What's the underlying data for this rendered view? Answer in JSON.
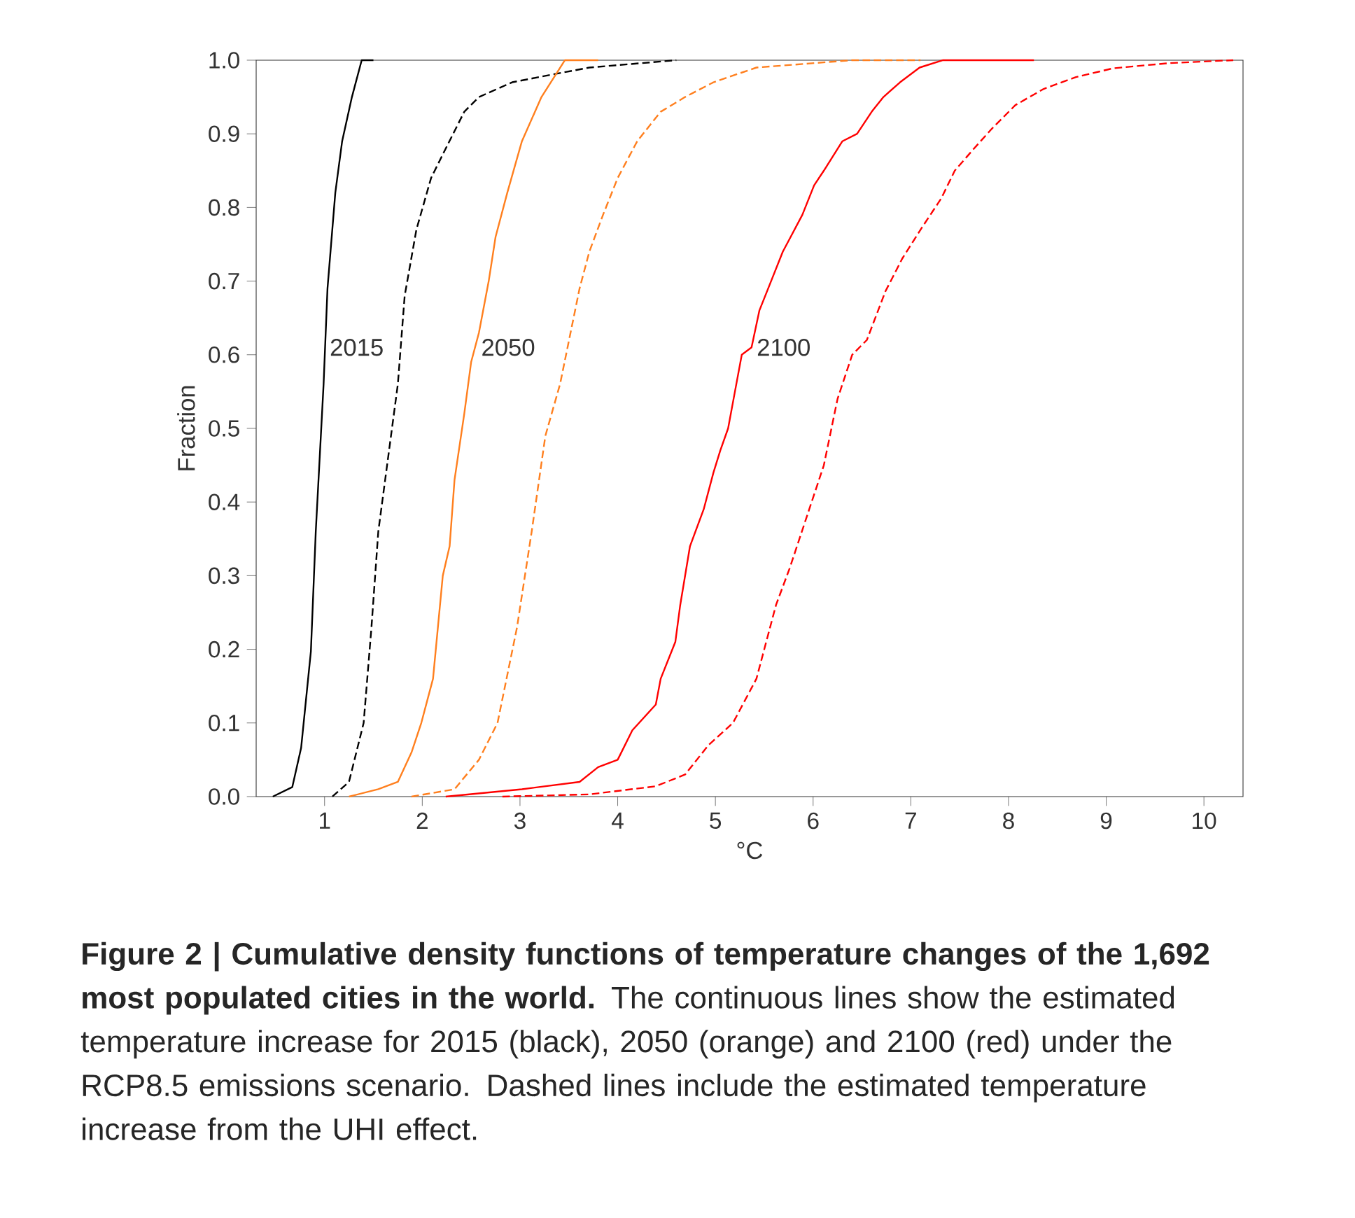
{
  "chart_data": {
    "type": "line",
    "xlabel": "°C",
    "ylabel": "Fraction",
    "xlim": [
      0.3,
      10.4
    ],
    "ylim": [
      0,
      1
    ],
    "xticks": [
      1,
      2,
      3,
      4,
      5,
      6,
      7,
      8,
      9,
      10
    ],
    "yticks": [
      {
        "value": 0,
        "label": "0.0"
      },
      0.1,
      0.2,
      0.3,
      0.4,
      0.5,
      0.6,
      0.7,
      0.8,
      0.9,
      {
        "value": 1,
        "label": "1.0"
      }
    ],
    "marker": "none",
    "series": [
      {
        "color": "#000000",
        "line_style": "solid",
        "x": [
          0.47,
          0.67,
          0.76,
          0.86,
          0.91,
          0.99,
          1.03,
          1.11,
          1.18,
          1.28,
          1.38,
          1.5
        ],
        "values": [
          0,
          0.013,
          0.066,
          0.197,
          0.36,
          0.56,
          0.69,
          0.82,
          0.89,
          0.95,
          1.0,
          1.0
        ]
      },
      {
        "color": "#000000",
        "line_style": "dashed",
        "x": [
          1.08,
          1.25,
          1.4,
          1.48,
          1.55,
          1.65,
          1.75,
          1.82,
          1.94,
          2.09,
          2.24,
          2.43,
          2.58,
          2.92,
          3.31,
          3.71,
          4.6
        ],
        "values": [
          0,
          0.02,
          0.1,
          0.23,
          0.36,
          0.46,
          0.56,
          0.68,
          0.77,
          0.84,
          0.88,
          0.93,
          0.95,
          0.97,
          0.98,
          0.99,
          1.0
        ]
      },
      {
        "color": "#ff7f1e",
        "line_style": "solid",
        "x": [
          1.25,
          1.55,
          1.75,
          1.89,
          1.99,
          2.11,
          2.21,
          2.28,
          2.33,
          2.43,
          2.5,
          2.58,
          2.68,
          2.75,
          2.87,
          3.02,
          3.22,
          3.46,
          3.8
        ],
        "values": [
          0,
          0.01,
          0.02,
          0.06,
          0.1,
          0.16,
          0.3,
          0.34,
          0.43,
          0.52,
          0.59,
          0.63,
          0.7,
          0.76,
          0.82,
          0.89,
          0.95,
          1.0,
          1.0
        ]
      },
      {
        "color": "#ff7f1e",
        "line_style": "dashed",
        "x": [
          1.89,
          2.33,
          2.58,
          2.77,
          2.97,
          3.12,
          3.26,
          3.41,
          3.61,
          3.71,
          3.85,
          4.0,
          4.2,
          4.44,
          4.69,
          4.98,
          5.42,
          6.4,
          7.1
        ],
        "values": [
          0,
          0.01,
          0.05,
          0.1,
          0.23,
          0.36,
          0.49,
          0.56,
          0.69,
          0.74,
          0.79,
          0.84,
          0.89,
          0.93,
          0.95,
          0.97,
          0.99,
          1.0,
          1.0
        ]
      },
      {
        "color": "#ff0000",
        "line_style": "solid",
        "x": [
          2.24,
          3.02,
          3.61,
          3.8,
          4.0,
          4.15,
          4.39,
          4.44,
          4.59,
          4.64,
          4.74,
          4.88,
          4.98,
          5.05,
          5.13,
          5.2,
          5.27,
          5.37,
          5.45,
          5.57,
          5.69,
          5.77,
          5.89,
          6.01,
          6.11,
          6.3,
          6.45,
          6.6,
          6.72,
          6.89,
          7.09,
          7.33,
          8.26
        ],
        "values": [
          0,
          0.01,
          0.02,
          0.04,
          0.05,
          0.09,
          0.125,
          0.16,
          0.21,
          0.26,
          0.34,
          0.39,
          0.44,
          0.47,
          0.5,
          0.55,
          0.6,
          0.61,
          0.66,
          0.7,
          0.74,
          0.76,
          0.79,
          0.83,
          0.85,
          0.89,
          0.9,
          0.93,
          0.95,
          0.97,
          0.99,
          1.0,
          1.0
        ]
      },
      {
        "color": "#ff0000",
        "line_style": "dashed",
        "x": [
          2.82,
          3.71,
          4.39,
          4.69,
          4.93,
          5.18,
          5.42,
          5.62,
          5.76,
          5.96,
          6.11,
          6.25,
          6.4,
          6.55,
          6.74,
          6.91,
          7.12,
          7.31,
          7.45,
          7.64,
          7.83,
          8.07,
          8.36,
          8.69,
          9.07,
          9.64,
          10.3
        ],
        "values": [
          0,
          0.003,
          0.014,
          0.03,
          0.07,
          0.1,
          0.16,
          0.26,
          0.31,
          0.39,
          0.45,
          0.54,
          0.6,
          0.62,
          0.686,
          0.73,
          0.774,
          0.812,
          0.85,
          0.879,
          0.907,
          0.939,
          0.961,
          0.977,
          0.989,
          0.996,
          1.0
        ]
      }
    ],
    "annotations": [
      {
        "text": "2015",
        "x": 1.03,
        "y": 0.61
      },
      {
        "text": "2050",
        "x": 2.58,
        "y": 0.61
      },
      {
        "text": "2100",
        "x": 5.4,
        "y": 0.61
      },
      "**Figure 2 | Cumulative density functions of temperature changes of the 1,692 most populated cities in the world.** The continuous lines show the estimated temperature increase for 2015 (black), 2050 (orange) and 2100 (red) under the RCP8.5 emissions scenario. Dashed lines include the estimated temperature increase from the UHI effect."
    ]
  }
}
